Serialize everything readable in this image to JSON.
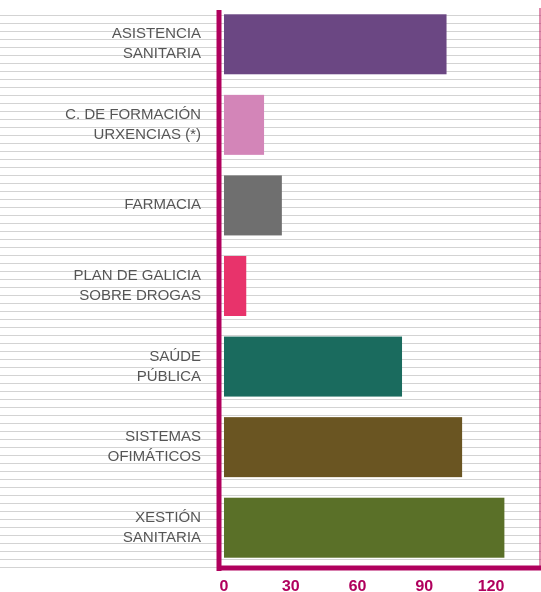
{
  "chart_data": {
    "type": "bar",
    "orientation": "horizontal",
    "categories": [
      "ASISTENCIA\nSANITARIA",
      "C. DE FORMACIÓN\nURXENCIAS (*)",
      "FARMACIA",
      "PLAN DE GALICIA\nSOBRE DROGAS",
      "SAÚDE\nPÚBLICA",
      "SISTEMAS\nOFIMÁTICOS",
      "XESTIÓN\nSANITARIA"
    ],
    "values": [
      100,
      18,
      26,
      10,
      80,
      107,
      126
    ],
    "colors": [
      "#6b4783",
      "#d385b8",
      "#6f6f6f",
      "#e8336b",
      "#1a6b5e",
      "#6a5522",
      "#5a7028"
    ],
    "xlim": [
      0,
      142
    ],
    "xticks": [
      0,
      30,
      60,
      90,
      120
    ]
  }
}
